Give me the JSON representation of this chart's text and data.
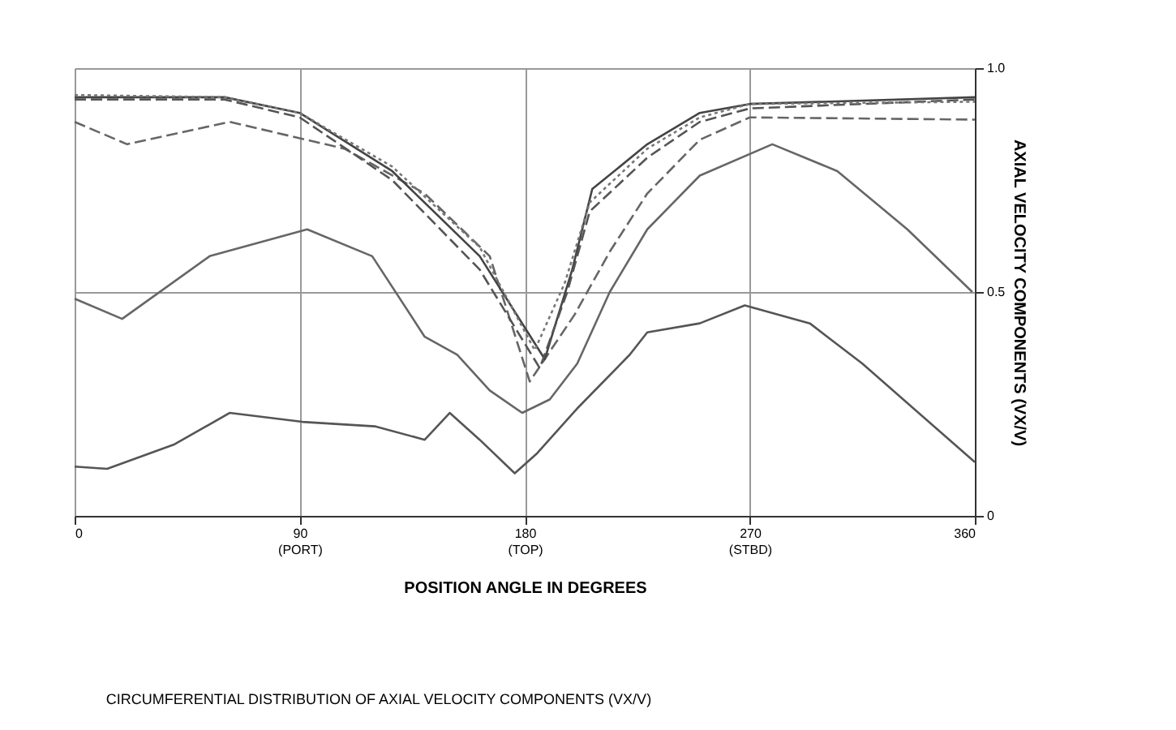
{
  "chart_data": {
    "type": "line",
    "xlabel": "POSITION ANGLE IN DEGREES",
    "ylabel": "AXIAL VELOCITY COMPONENTS (VX/V)",
    "annotations": [
      "CIRCUMFERENTIAL DISTRIBUTION OF AXIAL VELOCITY COMPONENTS (VX/V)"
    ],
    "xlim": [
      0,
      360
    ],
    "ylim": [
      0,
      1
    ],
    "xticks": [
      0,
      {
        "value": 90,
        "label": "90\n(PORT)"
      },
      {
        "value": 180,
        "label": "180\n(TOP)"
      },
      {
        "value": 270,
        "label": "270\n(STBD)"
      },
      360
    ],
    "yticks": [
      0,
      0.5,
      {
        "value": 1,
        "label": "1.0"
      }
    ],
    "grid": true,
    "marker": "none",
    "series": [
      {
        "color": "#555555",
        "line_style": "solid",
        "x": [
          0,
          13,
          40,
          62,
          91,
          120,
          140,
          150,
          162,
          176,
          185,
          201,
          222,
          229,
          250,
          268,
          294,
          315,
          360
        ],
        "values": [
          0.11,
          0.105,
          0.16,
          0.23,
          0.21,
          0.2,
          0.17,
          0.23,
          0.17,
          0.095,
          0.14,
          0.24,
          0.36,
          0.41,
          0.43,
          0.47,
          0.43,
          0.34,
          0.12
        ]
      },
      {
        "color": "#666666",
        "line_style": "solid",
        "x": [
          0,
          19,
          54,
          93,
          119,
          140,
          153,
          166,
          179,
          190,
          201,
          214,
          229,
          250,
          279,
          305,
          333,
          359
        ],
        "values": [
          0.485,
          0.44,
          0.58,
          0.64,
          0.58,
          0.4,
          0.36,
          0.28,
          0.23,
          0.26,
          0.34,
          0.5,
          0.64,
          0.76,
          0.83,
          0.77,
          0.64,
          0.5
        ]
      },
      {
        "color": "#666666",
        "line_style": "dashed",
        "x": [
          0,
          21,
          62,
          108,
          140,
          166,
          182,
          200,
          214,
          229,
          250,
          270,
          360
        ],
        "values": [
          0.88,
          0.83,
          0.88,
          0.82,
          0.72,
          0.58,
          0.3,
          0.45,
          0.59,
          0.72,
          0.84,
          0.89,
          0.885
        ]
      },
      {
        "color": "#444444",
        "line_style": "solid",
        "x": [
          0,
          60,
          90,
          127,
          162,
          188,
          199,
          207,
          229,
          250,
          270,
          360
        ],
        "values": [
          0.935,
          0.935,
          0.9,
          0.77,
          0.58,
          0.35,
          0.55,
          0.73,
          0.83,
          0.9,
          0.92,
          0.935
        ]
      },
      {
        "color": "#555555",
        "line_style": "dashed",
        "x": [
          0,
          60,
          90,
          127,
          162,
          186,
          197,
          206,
          229,
          250,
          270,
          360
        ],
        "values": [
          0.93,
          0.93,
          0.89,
          0.75,
          0.55,
          0.33,
          0.5,
          0.68,
          0.8,
          0.88,
          0.91,
          0.93
        ]
      },
      {
        "color": "#777777",
        "line_style": "dotted",
        "x": [
          0,
          60,
          90,
          127,
          162,
          184,
          196,
          206,
          229,
          250,
          270,
          360
        ],
        "values": [
          0.94,
          0.935,
          0.9,
          0.78,
          0.6,
          0.37,
          0.52,
          0.7,
          0.82,
          0.89,
          0.92,
          0.925
        ]
      }
    ]
  }
}
